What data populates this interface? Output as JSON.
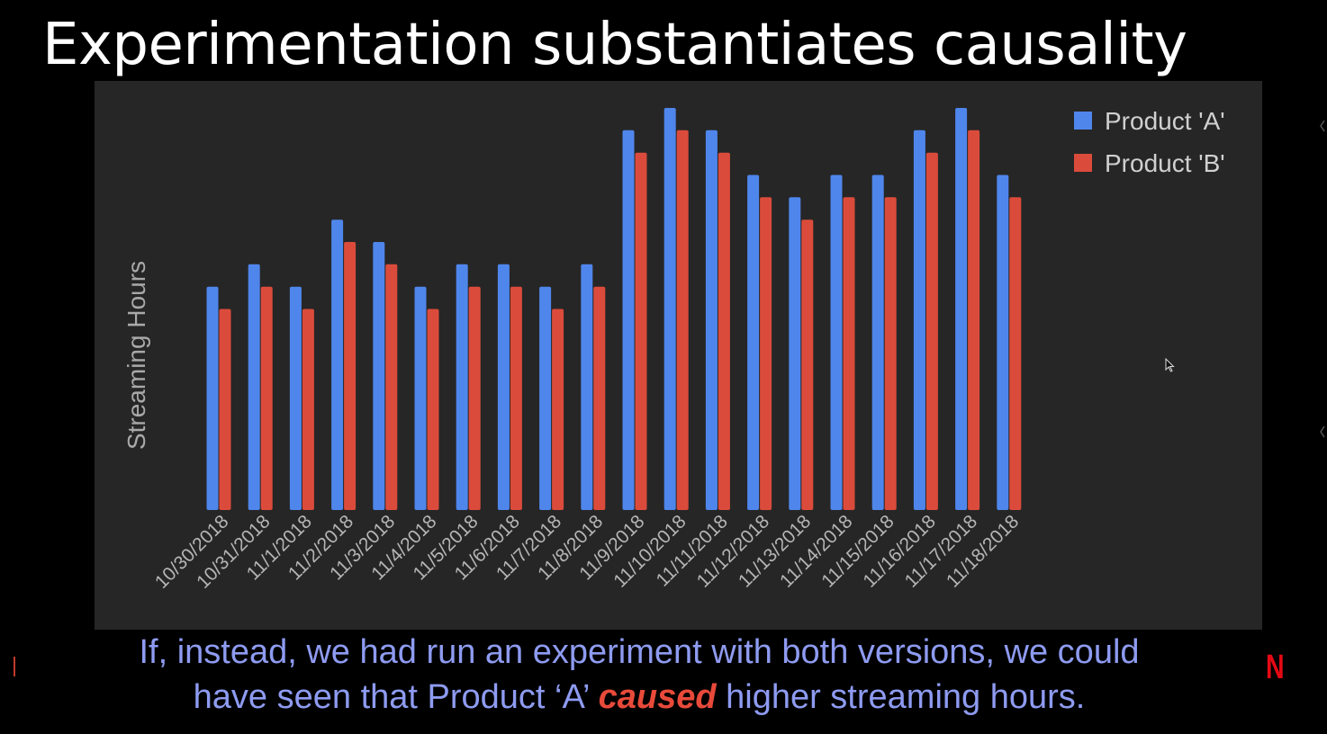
{
  "slide": {
    "title": "Experimentation substantiates causality",
    "caption_line1": "If, instead, we had run an experiment with both versions, we could",
    "caption_line2_pre": "have seen that Product ‘A’ ",
    "caption_emphasis": "caused",
    "caption_line2_post": " higher streaming hours.",
    "logo_text": "N"
  },
  "icons": {
    "cursor": "mouse-cursor-icon",
    "logo": "netflix-logo-icon"
  },
  "colors": {
    "background": "#000000",
    "chart_background": "#262626",
    "series_a": "#4f86ec",
    "series_b": "#db4b3b",
    "caption": "#8e9bf1",
    "caption_emphasis": "#e84a3a",
    "logo": "#e50914"
  },
  "chart_data": {
    "type": "bar",
    "title": "",
    "xlabel": "",
    "ylabel": "Streaming Hours",
    "y_tick_labels_shown": false,
    "grid": false,
    "legend_position": "top-right",
    "ylim": [
      0,
      18
    ],
    "categories": [
      "10/30/2018",
      "10/31/2018",
      "11/1/2018",
      "11/2/2018",
      "11/3/2018",
      "11/4/2018",
      "11/5/2018",
      "11/6/2018",
      "11/7/2018",
      "11/8/2018",
      "11/9/2018",
      "11/10/2018",
      "11/11/2018",
      "11/12/2018",
      "11/13/2018",
      "11/14/2018",
      "11/15/2018",
      "11/16/2018",
      "11/17/2018",
      "11/18/2018"
    ],
    "series": [
      {
        "name": "Product 'A'",
        "color": "#4f86ec",
        "values": [
          10,
          11,
          10,
          13,
          12,
          10,
          11,
          11,
          10,
          11,
          17,
          18,
          17,
          15,
          14,
          15,
          15,
          17,
          18,
          15
        ]
      },
      {
        "name": "Product 'B'",
        "color": "#db4b3b",
        "values": [
          9,
          10,
          9,
          12,
          11,
          9,
          10,
          10,
          9,
          10,
          16,
          17,
          16,
          14,
          13,
          14,
          14,
          16,
          17,
          14
        ]
      }
    ]
  }
}
